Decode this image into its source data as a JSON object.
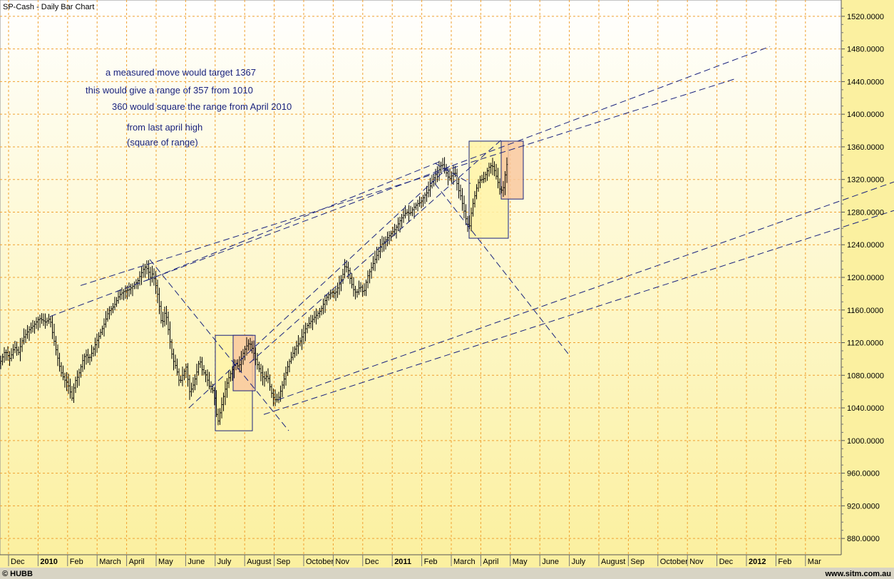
{
  "chart_data": {
    "type": "bar",
    "title": "SP-Cash - Daily Bar Chart",
    "footer_left": "© HUBB",
    "footer_right": "www.sitm.com.au",
    "ylim": [
      860,
      1540
    ],
    "yticks": [
      880,
      920,
      960,
      1000,
      1040,
      1080,
      1120,
      1160,
      1200,
      1240,
      1280,
      1320,
      1360,
      1400,
      1440,
      1480,
      1520
    ],
    "ytick_labels": [
      "880.0000",
      "920.0000",
      "960.0000",
      "1000.0000",
      "1040.0000",
      "1080.0000",
      "1120.0000",
      "1160.0000",
      "1200.0000",
      "1240.0000",
      "1280.0000",
      "1320.0000",
      "1360.0000",
      "1400.0000",
      "1440.0000",
      "1480.0000",
      "1520.0000"
    ],
    "months": [
      {
        "label": "Dec",
        "year": false
      },
      {
        "label": "2010",
        "year": true
      },
      {
        "label": "Feb",
        "year": false
      },
      {
        "label": "March",
        "year": false
      },
      {
        "label": "April",
        "year": false
      },
      {
        "label": "May",
        "year": false
      },
      {
        "label": "June",
        "year": false
      },
      {
        "label": "July",
        "year": false
      },
      {
        "label": "August",
        "year": false
      },
      {
        "label": "Sep",
        "year": false
      },
      {
        "label": "October",
        "year": false
      },
      {
        "label": "Nov",
        "year": false
      },
      {
        "label": "Dec",
        "year": false
      },
      {
        "label": "2011",
        "year": true
      },
      {
        "label": "Feb",
        "year": false
      },
      {
        "label": "March",
        "year": false
      },
      {
        "label": "April",
        "year": false
      },
      {
        "label": "May",
        "year": false
      },
      {
        "label": "June",
        "year": false
      },
      {
        "label": "July",
        "year": false
      },
      {
        "label": "August",
        "year": false
      },
      {
        "label": "Sep",
        "year": false
      },
      {
        "label": "October",
        "year": false
      },
      {
        "label": "Nov",
        "year": false
      },
      {
        "label": "Dec",
        "year": false
      },
      {
        "label": "2012",
        "year": true
      },
      {
        "label": "Feb",
        "year": false
      },
      {
        "label": "Mar",
        "year": false
      }
    ],
    "price_path": [
      [
        0,
        1095
      ],
      [
        7,
        1110
      ],
      [
        14,
        1100
      ],
      [
        20,
        1115
      ],
      [
        26,
        1108
      ],
      [
        32,
        1125
      ],
      [
        40,
        1135
      ],
      [
        48,
        1142
      ],
      [
        55,
        1150
      ],
      [
        64,
        1145
      ],
      [
        70,
        1150
      ],
      [
        74,
        1130
      ],
      [
        80,
        1105
      ],
      [
        85,
        1085
      ],
      [
        90,
        1075
      ],
      [
        95,
        1070
      ],
      [
        101,
        1052
      ],
      [
        105,
        1072
      ],
      [
        110,
        1080
      ],
      [
        116,
        1098
      ],
      [
        120,
        1106
      ],
      [
        125,
        1100
      ],
      [
        130,
        1110
      ],
      [
        137,
        1125
      ],
      [
        145,
        1140
      ],
      [
        152,
        1158
      ],
      [
        160,
        1165
      ],
      [
        167,
        1178
      ],
      [
        174,
        1183
      ],
      [
        181,
        1185
      ],
      [
        187,
        1190
      ],
      [
        193,
        1195
      ],
      [
        198,
        1205
      ],
      [
        203,
        1213
      ],
      [
        207,
        1210
      ],
      [
        211,
        1200
      ],
      [
        214,
        1205
      ],
      [
        218,
        1192
      ],
      [
        222,
        1175
      ],
      [
        227,
        1140
      ],
      [
        232,
        1160
      ],
      [
        237,
        1130
      ],
      [
        242,
        1100
      ],
      [
        247,
        1090
      ],
      [
        252,
        1070
      ],
      [
        256,
        1080
      ],
      [
        261,
        1090
      ],
      [
        266,
        1060
      ],
      [
        270,
        1065
      ],
      [
        275,
        1080
      ],
      [
        280,
        1100
      ],
      [
        284,
        1085
      ],
      [
        289,
        1080
      ],
      [
        294,
        1065
      ],
      [
        300,
        1060
      ],
      [
        305,
        1020
      ],
      [
        310,
        1040
      ],
      [
        315,
        1060
      ],
      [
        320,
        1075
      ],
      [
        325,
        1085
      ],
      [
        330,
        1095
      ],
      [
        335,
        1090
      ],
      [
        340,
        1105
      ],
      [
        345,
        1115
      ],
      [
        350,
        1120
      ],
      [
        355,
        1110
      ],
      [
        360,
        1095
      ],
      [
        365,
        1085
      ],
      [
        370,
        1075
      ],
      [
        375,
        1080
      ],
      [
        380,
        1060
      ],
      [
        385,
        1050
      ],
      [
        390,
        1050
      ],
      [
        395,
        1065
      ],
      [
        400,
        1080
      ],
      [
        405,
        1095
      ],
      [
        410,
        1105
      ],
      [
        415,
        1115
      ],
      [
        420,
        1120
      ],
      [
        425,
        1130
      ],
      [
        430,
        1140
      ],
      [
        435,
        1145
      ],
      [
        440,
        1150
      ],
      [
        445,
        1155
      ],
      [
        450,
        1160
      ],
      [
        455,
        1170
      ],
      [
        460,
        1178
      ],
      [
        465,
        1182
      ],
      [
        470,
        1180
      ],
      [
        475,
        1190
      ],
      [
        480,
        1200
      ],
      [
        484,
        1215
      ],
      [
        488,
        1210
      ],
      [
        492,
        1195
      ],
      [
        496,
        1185
      ],
      [
        500,
        1180
      ],
      [
        505,
        1190
      ],
      [
        510,
        1180
      ],
      [
        515,
        1200
      ],
      [
        520,
        1210
      ],
      [
        525,
        1220
      ],
      [
        530,
        1230
      ],
      [
        535,
        1240
      ],
      [
        540,
        1245
      ],
      [
        545,
        1250
      ],
      [
        550,
        1255
      ],
      [
        555,
        1260
      ],
      [
        560,
        1268
      ],
      [
        565,
        1275
      ],
      [
        570,
        1280
      ],
      [
        575,
        1278
      ],
      [
        580,
        1285
      ],
      [
        585,
        1290
      ],
      [
        590,
        1292
      ],
      [
        595,
        1300
      ],
      [
        600,
        1305
      ],
      [
        605,
        1315
      ],
      [
        610,
        1325
      ],
      [
        615,
        1330
      ],
      [
        620,
        1340
      ],
      [
        625,
        1330
      ],
      [
        630,
        1320
      ],
      [
        634,
        1325
      ],
      [
        638,
        1330
      ],
      [
        642,
        1310
      ],
      [
        646,
        1300
      ],
      [
        650,
        1285
      ],
      [
        654,
        1270
      ],
      [
        658,
        1260
      ],
      [
        662,
        1285
      ],
      [
        666,
        1300
      ],
      [
        670,
        1315
      ],
      [
        674,
        1320
      ],
      [
        678,
        1320
      ],
      [
        682,
        1328
      ],
      [
        686,
        1335
      ],
      [
        690,
        1338
      ],
      [
        694,
        1330
      ],
      [
        698,
        1318
      ],
      [
        702,
        1305
      ],
      [
        706,
        1310
      ],
      [
        710,
        1335
      ],
      [
        713,
        1345
      ]
    ],
    "trendlines": [
      {
        "x1": 70,
        "y1": 1152,
        "x2": 1080,
        "y2": 1483
      },
      {
        "x1": 113,
        "y1": 1190,
        "x2": 1030,
        "y2": 1443
      },
      {
        "x1": 205,
        "y1": 1196,
        "x2": 620,
        "y2": 1343
      },
      {
        "x1": 350,
        "y1": 1095,
        "x2": 705,
        "y2": 1370
      },
      {
        "x1": 390,
        "y1": 1050,
        "x2": 1254,
        "y2": 1317
      },
      {
        "x1": 370,
        "y1": 1032,
        "x2": 1254,
        "y2": 1282
      },
      {
        "x1": 265,
        "y1": 1040,
        "x2": 635,
        "y2": 1340
      },
      {
        "x1": 210,
        "y1": 1222,
        "x2": 405,
        "y2": 1012
      },
      {
        "x1": 610,
        "y1": 1315,
        "x2": 800,
        "y2": 1103
      },
      {
        "x1": 610,
        "y1": 1340,
        "x2": 660,
        "y2": 1315
      }
    ],
    "boxes": [
      {
        "x1": 302,
        "x2": 354,
        "y_low": 1012,
        "y_high": 1129,
        "fill": "#fff3a8"
      },
      {
        "x1": 327,
        "x2": 358,
        "y_low": 1061,
        "y_high": 1129,
        "fill": "#f9c8a0"
      },
      {
        "x1": 658,
        "x2": 713,
        "y_low": 1248,
        "y_high": 1367,
        "fill": "#fff3a8"
      },
      {
        "x1": 703,
        "x2": 734,
        "y_low": 1296,
        "y_high": 1367,
        "fill": "#f9c8a0"
      }
    ],
    "annotations": [
      "a measured move would target 1367",
      "this would give a range of 357 from 1010",
      "360 would square the range from April 2010",
      "from last april high",
      "(square of range)"
    ]
  }
}
